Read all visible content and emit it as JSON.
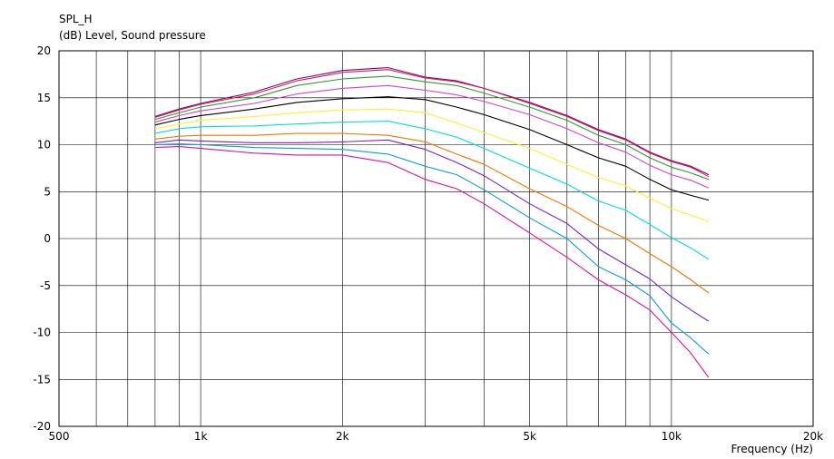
{
  "chart_data": {
    "type": "line",
    "title": "SPL_H",
    "ylabel": "(dB)  Level, Sound pressure",
    "xlabel": "Frequency  (Hz)",
    "x_scale": "log",
    "xlim": [
      500,
      20000
    ],
    "ylim": [
      -20,
      20
    ],
    "grid": true,
    "legend": "none",
    "x_ticks": [
      {
        "value": 500,
        "label": "500"
      },
      {
        "value": 1000,
        "label": "1k"
      },
      {
        "value": 2000,
        "label": "2k"
      },
      {
        "value": 5000,
        "label": "5k"
      },
      {
        "value": 10000,
        "label": "10k"
      },
      {
        "value": 20000,
        "label": "20k"
      }
    ],
    "y_ticks": [
      20,
      15,
      10,
      5,
      0,
      -5,
      -10,
      -15,
      -20
    ],
    "x": [
      800,
      900,
      1000,
      1300,
      1600,
      2000,
      2500,
      3000,
      3500,
      4000,
      5000,
      6000,
      7000,
      8000,
      9000,
      10000,
      11000,
      12000
    ],
    "series": [
      {
        "color": "#800080",
        "values": [
          13.0,
          13.8,
          14.4,
          15.6,
          17.0,
          17.9,
          18.2,
          17.2,
          16.8,
          16.0,
          14.5,
          13.1,
          11.6,
          10.6,
          9.2,
          8.3,
          7.7,
          6.8
        ]
      },
      {
        "color": "#cc2244",
        "values": [
          12.9,
          13.7,
          14.3,
          15.4,
          16.8,
          17.7,
          18.0,
          17.1,
          16.7,
          16.0,
          14.4,
          13.0,
          11.5,
          10.5,
          9.1,
          8.2,
          7.6,
          6.6
        ]
      },
      {
        "color": "#339933",
        "values": [
          12.7,
          13.4,
          14.0,
          15.0,
          16.3,
          17.0,
          17.3,
          16.7,
          16.3,
          15.5,
          14.0,
          12.6,
          11.0,
          10.0,
          8.6,
          7.6,
          7.0,
          6.3
        ]
      },
      {
        "color": "#cc44cc",
        "values": [
          12.4,
          13.1,
          13.6,
          14.4,
          15.4,
          16.0,
          16.3,
          15.8,
          15.3,
          14.6,
          13.2,
          11.7,
          10.2,
          9.2,
          7.8,
          6.8,
          6.2,
          5.4
        ]
      },
      {
        "color": "#000000",
        "values": [
          12.1,
          12.7,
          13.1,
          13.8,
          14.5,
          14.9,
          15.1,
          14.8,
          14.0,
          13.2,
          11.6,
          10.0,
          8.6,
          7.7,
          6.3,
          5.2,
          4.6,
          4.1
        ]
      },
      {
        "color": "#ffee33",
        "values": [
          11.7,
          12.2,
          12.6,
          13.0,
          13.4,
          13.7,
          13.8,
          13.4,
          12.3,
          11.3,
          9.6,
          7.9,
          6.5,
          5.6,
          4.3,
          3.2,
          2.5,
          1.8
        ]
      },
      {
        "color": "#00dddd",
        "values": [
          11.2,
          11.7,
          11.9,
          12.0,
          12.2,
          12.4,
          12.5,
          11.7,
          10.8,
          9.6,
          7.5,
          5.8,
          4.0,
          3.0,
          1.5,
          0.1,
          -1.0,
          -2.2
        ]
      },
      {
        "color": "#ee7700",
        "values": [
          10.6,
          10.9,
          11.0,
          11.0,
          11.2,
          11.2,
          11.0,
          10.3,
          9.0,
          7.9,
          5.3,
          3.4,
          1.4,
          0.0,
          -1.6,
          -3.0,
          -4.4,
          -5.8
        ]
      },
      {
        "color": "#7722cc",
        "values": [
          10.2,
          10.5,
          10.4,
          10.2,
          10.2,
          10.3,
          10.5,
          9.5,
          8.1,
          6.7,
          3.7,
          1.6,
          -1.1,
          -2.8,
          -4.3,
          -6.2,
          -7.6,
          -8.8
        ]
      },
      {
        "color": "#1199dd",
        "values": [
          10.0,
          10.1,
          10.0,
          9.7,
          9.6,
          9.5,
          9.0,
          7.7,
          6.8,
          5.2,
          2.2,
          0.0,
          -3.0,
          -4.4,
          -6.1,
          -9.0,
          -10.6,
          -12.3
        ]
      },
      {
        "color": "#dd1199",
        "values": [
          9.7,
          9.8,
          9.6,
          9.1,
          8.9,
          8.9,
          8.1,
          6.3,
          5.3,
          3.7,
          0.6,
          -2.0,
          -4.4,
          -6.0,
          -7.6,
          -10.0,
          -12.2,
          -14.8
        ]
      }
    ]
  }
}
